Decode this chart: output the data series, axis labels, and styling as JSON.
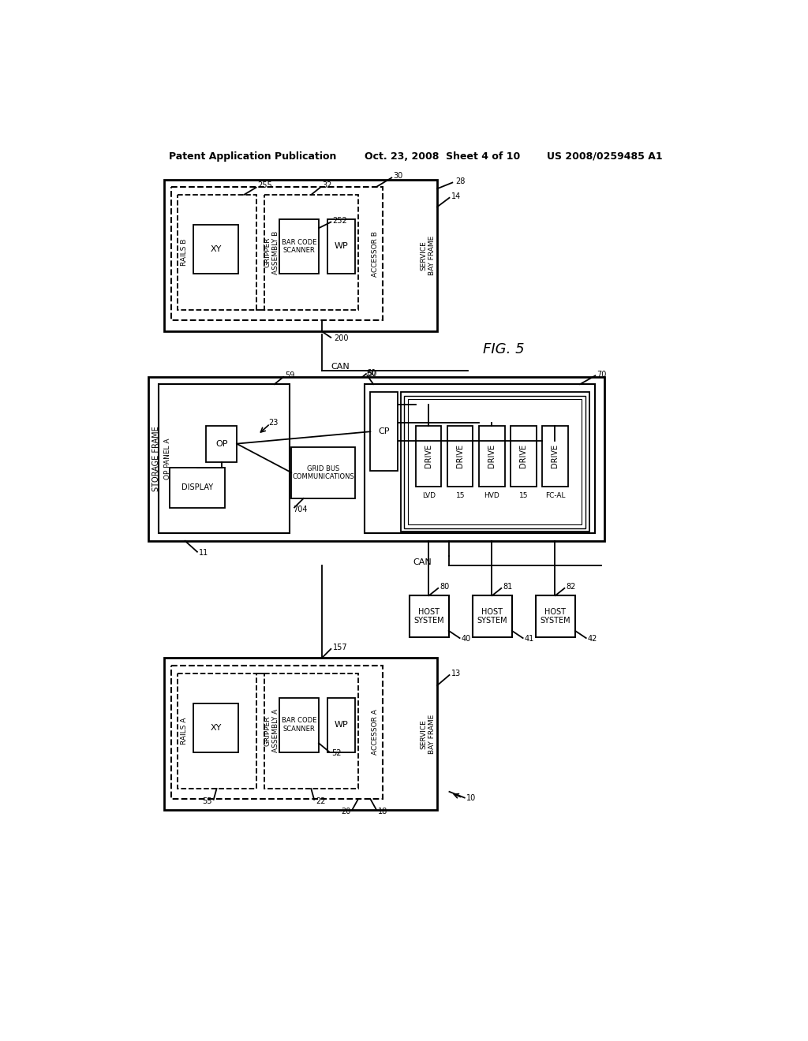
{
  "bg_color": "#ffffff",
  "header_left": "Patent Application Publication",
  "header_mid": "Oct. 23, 2008  Sheet 4 of 10",
  "header_right": "US 2008/0259485 A1",
  "fig_label": "FIG. 5"
}
